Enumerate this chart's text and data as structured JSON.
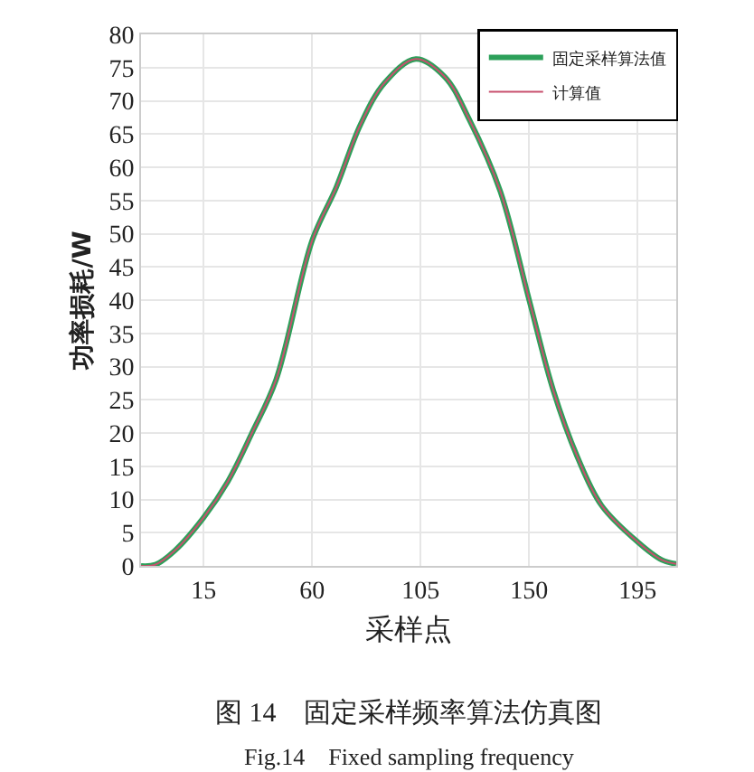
{
  "chart_data": {
    "type": "line",
    "xlabel": "采样点",
    "ylabel": "功率损耗/W",
    "annotations": [
      "图 14　固定采样频率算法仿真图",
      "Fig.14　Fixed sampling frequency"
    ],
    "x": [
      -11,
      -5,
      3,
      15,
      25,
      35,
      45,
      60,
      70,
      80,
      90,
      103,
      115,
      125,
      138,
      150,
      160,
      170,
      180,
      195,
      205,
      211
    ],
    "series": [
      {
        "name": "固定采样算法值",
        "color": "#2ca05a",
        "values": [
          0,
          0.2,
          2.3,
          7.3,
          12.7,
          20,
          28,
          49,
          57,
          66.4,
          72.7,
          76.3,
          73.6,
          67.3,
          56.4,
          40,
          26.4,
          16.4,
          9.1,
          3.6,
          0.9,
          0.3
        ]
      },
      {
        "name": "计算值",
        "color": "#c8506e",
        "values": [
          0,
          0.2,
          2.3,
          7.3,
          12.7,
          20,
          28,
          49,
          57,
          66.4,
          72.7,
          76.3,
          73.6,
          67.3,
          56.4,
          40,
          26.4,
          16.4,
          9.1,
          3.6,
          0.9,
          0.3
        ]
      }
    ],
    "xlim": [
      -11,
      211
    ],
    "xticks": [
      15,
      60,
      105,
      150,
      195
    ],
    "ylim": [
      0,
      80
    ],
    "yticks": [
      0,
      5,
      10,
      15,
      20,
      25,
      30,
      35,
      40,
      45,
      50,
      55,
      60,
      65,
      70,
      75,
      80
    ],
    "grid": true,
    "legend": "top right",
    "line_style": "solid",
    "marker": "none"
  }
}
